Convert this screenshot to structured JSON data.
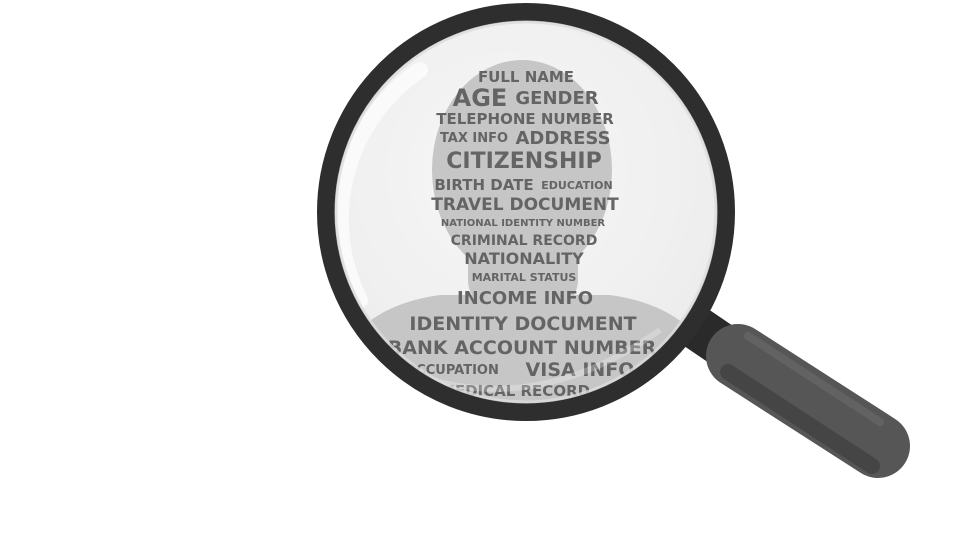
{
  "illustration": {
    "handle_color": "#555555",
    "handle_dark": "#3f3f3f",
    "rim_color": "#2e2e2e",
    "lens_color": "#f2f2f2",
    "silhouette_color": "#bfbfbf",
    "text_color": "#4f4f4f",
    "icons": [
      "magnifying-glass-icon",
      "person-silhouette-icon"
    ]
  },
  "words": {
    "full_name": "FULL NAME",
    "age": "AGE",
    "gender": "GENDER",
    "telephone_number": "TELEPHONE NUMBER",
    "tax_info": "TAX INFO",
    "address": "ADDRESS",
    "citizenship": "CITIZENSHIP",
    "birth_date": "BIRTH DATE",
    "education": "EDUCATION",
    "travel_document": "TRAVEL DOCUMENT",
    "national_identity_number": "NATIONAL IDENTITY NUMBER",
    "criminal_record": "CRIMINAL RECORD",
    "nationality": "NATIONALITY",
    "marital_status": "MARITAL STATUS",
    "income_info": "INCOME INFO",
    "identity_document": "IDENTITY DOCUMENT",
    "bank_account_number": "BANK ACCOUNT NUMBER",
    "occupation": "OCCUPATION",
    "visa_info": "VISA INFO",
    "medical_record": "MEDICAL RECORD"
  }
}
